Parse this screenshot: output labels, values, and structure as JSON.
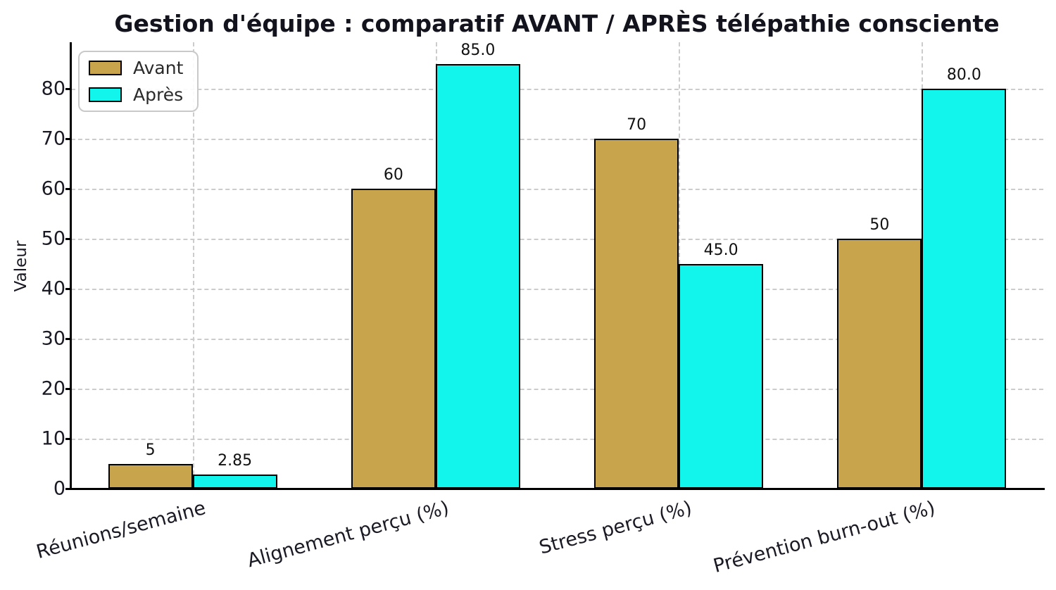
{
  "chart_data": {
    "type": "bar",
    "title": "Gestion d'équipe : comparatif AVANT / APRÈS télépathie consciente",
    "xlabel": "",
    "ylabel": "Valeur",
    "categories": [
      "Réunions/semaine",
      "Alignement perçu (%)",
      "Stress perçu (%)",
      "Prévention burn-out (%)"
    ],
    "series": [
      {
        "name": "Avant",
        "color": "#c8a44c",
        "values": [
          5,
          60,
          70,
          50
        ],
        "value_labels": [
          "5",
          "60",
          "70",
          "50"
        ]
      },
      {
        "name": "Après",
        "color": "#12f5ec",
        "values": [
          2.85,
          85.0,
          45.0,
          80.0
        ],
        "value_labels": [
          "2.85",
          "85.0",
          "45.0",
          "80.0"
        ]
      }
    ],
    "yticks": [
      0,
      10,
      20,
      30,
      40,
      50,
      60,
      70,
      80
    ],
    "ylim": [
      0,
      89.3
    ],
    "grid": true,
    "grid_color": "#cccccc",
    "bar_edge_color": "#000000",
    "legend_position": "upper left",
    "background": "#ffffff",
    "text_color": "#1a1a24"
  }
}
